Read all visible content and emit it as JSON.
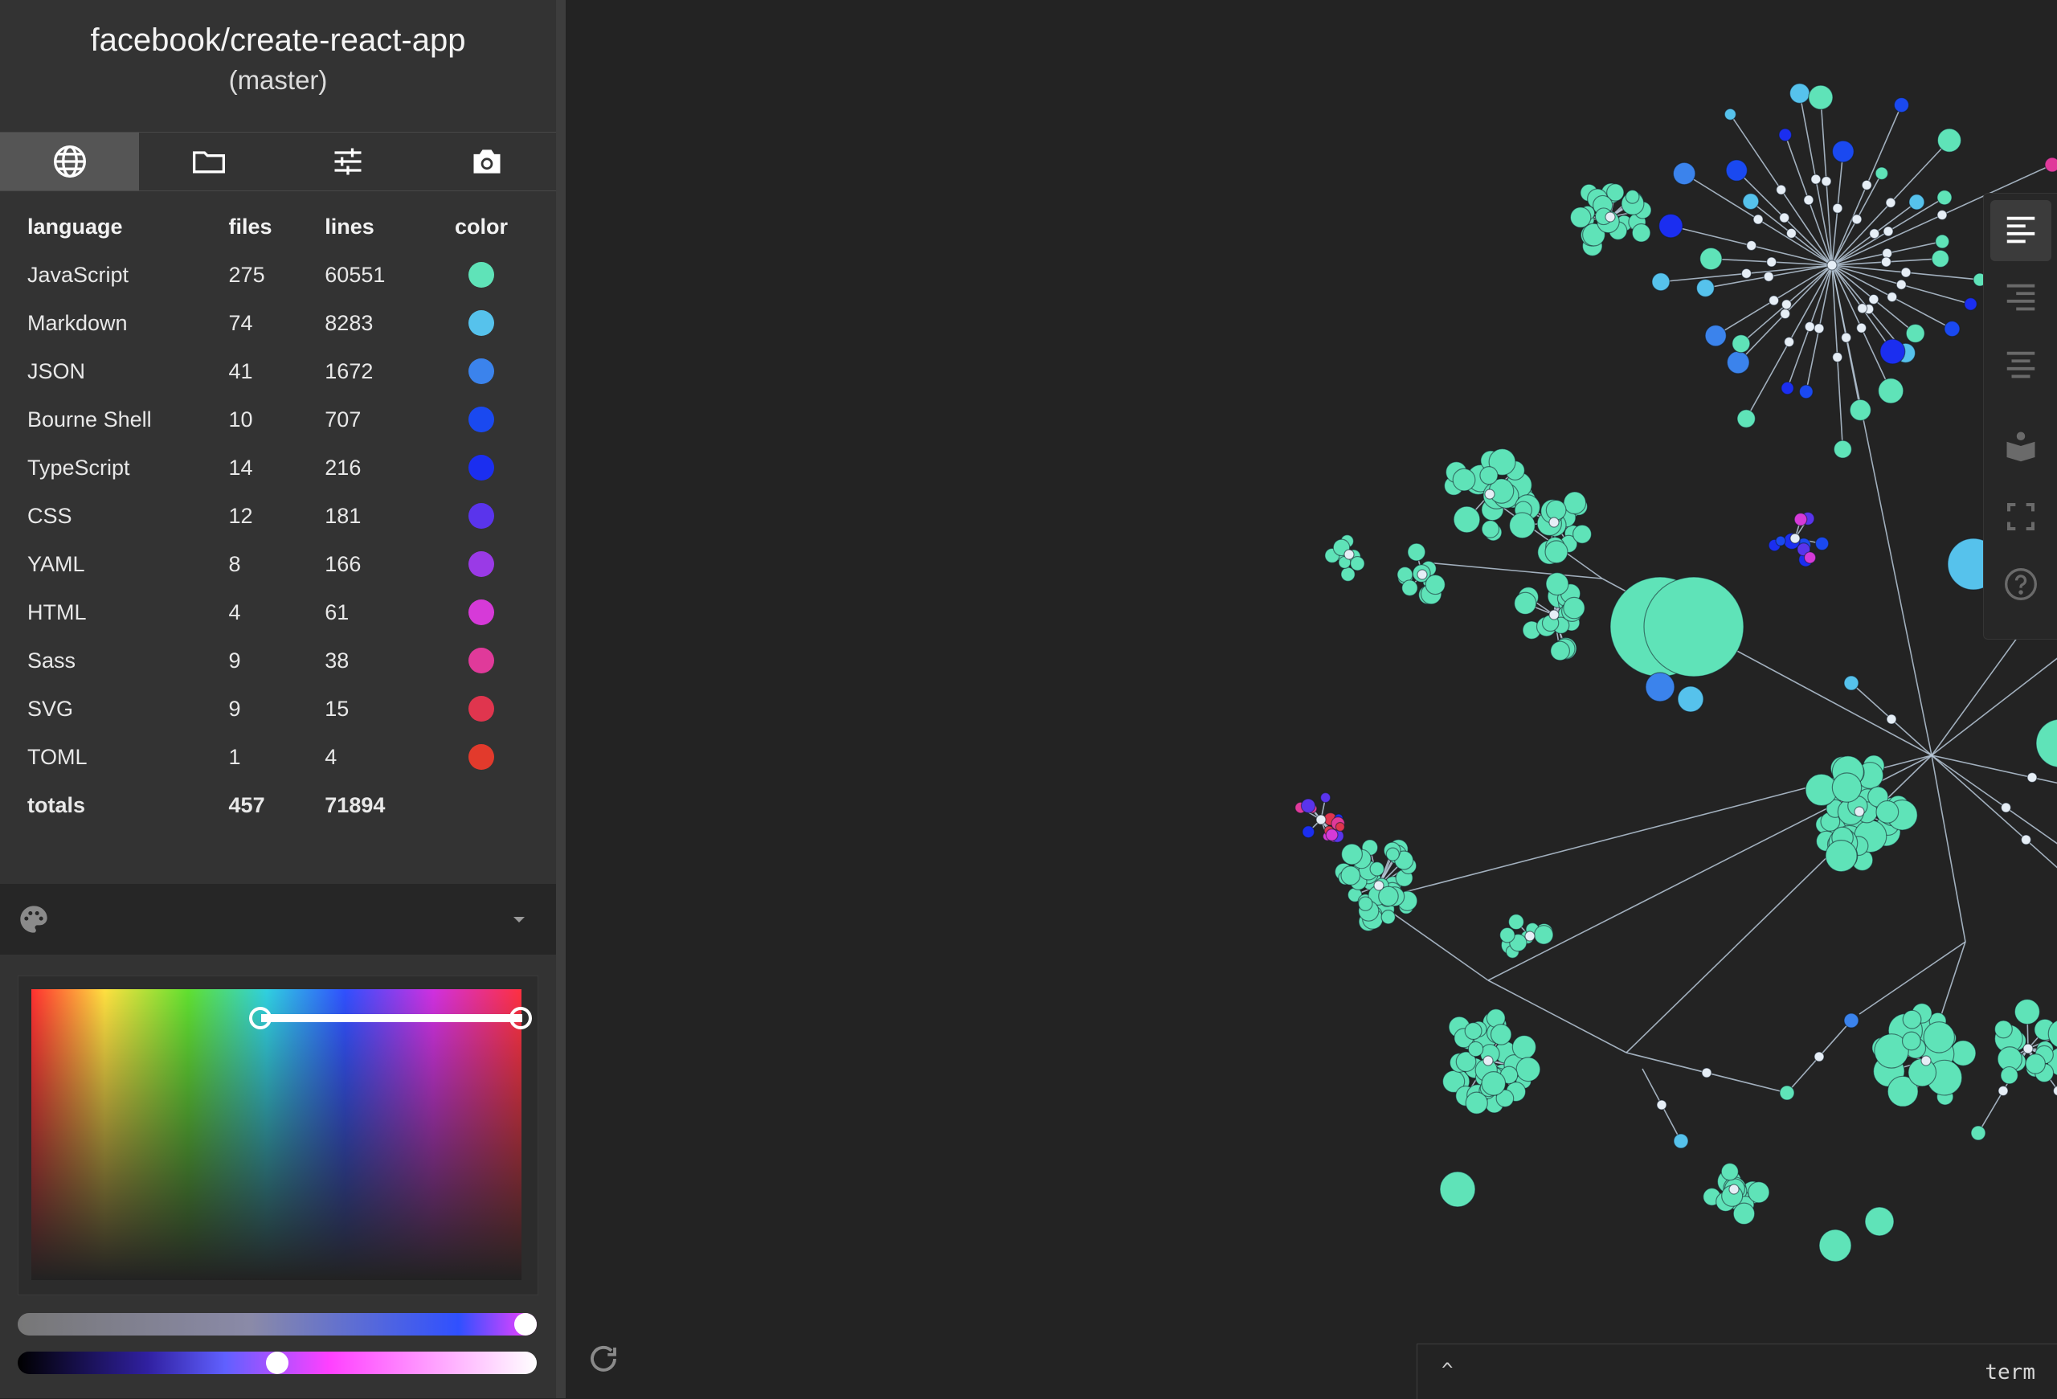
{
  "header": {
    "repo": "facebook/create-react-app",
    "branch": "(master)"
  },
  "tabs": [
    {
      "icon": "globe-icon",
      "active": true
    },
    {
      "icon": "folder-icon",
      "active": false
    },
    {
      "icon": "sliders-icon",
      "active": false
    },
    {
      "icon": "camera-icon",
      "active": false
    }
  ],
  "languages": {
    "headers": {
      "language": "language",
      "files": "files",
      "lines": "lines",
      "color": "color"
    },
    "rows": [
      {
        "language": "JavaScript",
        "files": "275",
        "lines": "60551",
        "color": "#5fe3b8"
      },
      {
        "language": "Markdown",
        "files": "74",
        "lines": "8283",
        "color": "#56c2ec"
      },
      {
        "language": "JSON",
        "files": "41",
        "lines": "1672",
        "color": "#3b83ec"
      },
      {
        "language": "Bourne Shell",
        "files": "10",
        "lines": "707",
        "color": "#1a49f0"
      },
      {
        "language": "TypeScript",
        "files": "14",
        "lines": "216",
        "color": "#1b2ef0"
      },
      {
        "language": "CSS",
        "files": "12",
        "lines": "181",
        "color": "#5a34ec"
      },
      {
        "language": "YAML",
        "files": "8",
        "lines": "166",
        "color": "#9a3ae6"
      },
      {
        "language": "HTML",
        "files": "4",
        "lines": "61",
        "color": "#d63ad8"
      },
      {
        "language": "Sass",
        "files": "9",
        "lines": "38",
        "color": "#e03a9a"
      },
      {
        "language": "SVG",
        "files": "9",
        "lines": "15",
        "color": "#e0354e"
      },
      {
        "language": "TOML",
        "files": "1",
        "lines": "4",
        "color": "#e23a2c"
      }
    ],
    "totals": {
      "label": "totals",
      "files": "457",
      "lines": "71894"
    }
  },
  "palette": {
    "icon": "palette-icon",
    "dropdown_icon": "caret-down-icon"
  },
  "color_picker": {
    "hue_range": [
      0.47,
      1.0
    ],
    "saturation": 1.0,
    "lightness": 0.5
  },
  "right_toolbar": [
    {
      "icon": "align-left-icon",
      "active": true
    },
    {
      "icon": "align-right-icon",
      "active": false
    },
    {
      "icon": "align-center-icon",
      "active": false
    },
    {
      "icon": "book-icon",
      "active": false
    },
    {
      "icon": "fullscreen-icon",
      "active": false
    },
    {
      "icon": "help-icon",
      "active": false
    }
  ],
  "footer": {
    "refresh_icon": "refresh-icon",
    "caret": "^",
    "term_label": "term"
  },
  "colors": {
    "edge": "#b8c8d8",
    "junction": "#e6eef6",
    "background": "#232323",
    "sidebar": "#333333"
  }
}
